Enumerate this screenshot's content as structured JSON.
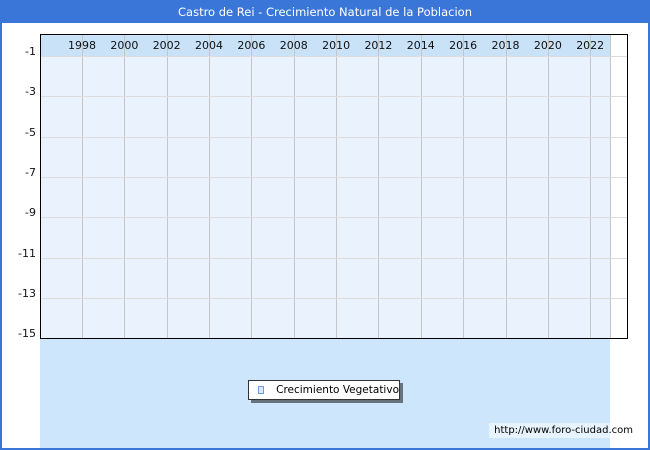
{
  "header": {
    "title": "Castro de Rei - Crecimiento Natural de la Poblacion"
  },
  "chart_data": {
    "type": "line",
    "title": "Castro de Rei - Crecimiento Natural de la Poblacion",
    "x_ticks": [
      "1998",
      "2000",
      "2002",
      "2004",
      "2006",
      "2008",
      "2010",
      "2012",
      "2014",
      "2016",
      "2018",
      "2020",
      "2022"
    ],
    "y_ticks": [
      "-1",
      "-3",
      "-5",
      "-7",
      "-9",
      "-11",
      "-13",
      "-15"
    ],
    "xlabel": "",
    "ylabel": "",
    "ylim": [
      -15,
      0
    ],
    "grid": true,
    "legend_position": "bottom-center",
    "series": [
      {
        "name": "Crecimiento Vegetativo",
        "values": []
      }
    ]
  },
  "legend": {
    "items": [
      {
        "label": "Crecimiento Vegetativo",
        "swatch_fill": "#d8eafb",
        "swatch_border": "#6b9cd6"
      }
    ]
  },
  "footer": {
    "url": "http://www.foro-ciudad.com"
  },
  "colors": {
    "titlebar": "#3a76d8",
    "frame_border": "#3a76d8",
    "axis_band": "#c9e2f8",
    "plot_bg": "#e9f2fd",
    "bottom_panel": "#cde6fb",
    "gridline_vertical": "#c6c6c6",
    "gridline_horizontal": "#dcdcdc",
    "chart_border": "#000000"
  }
}
